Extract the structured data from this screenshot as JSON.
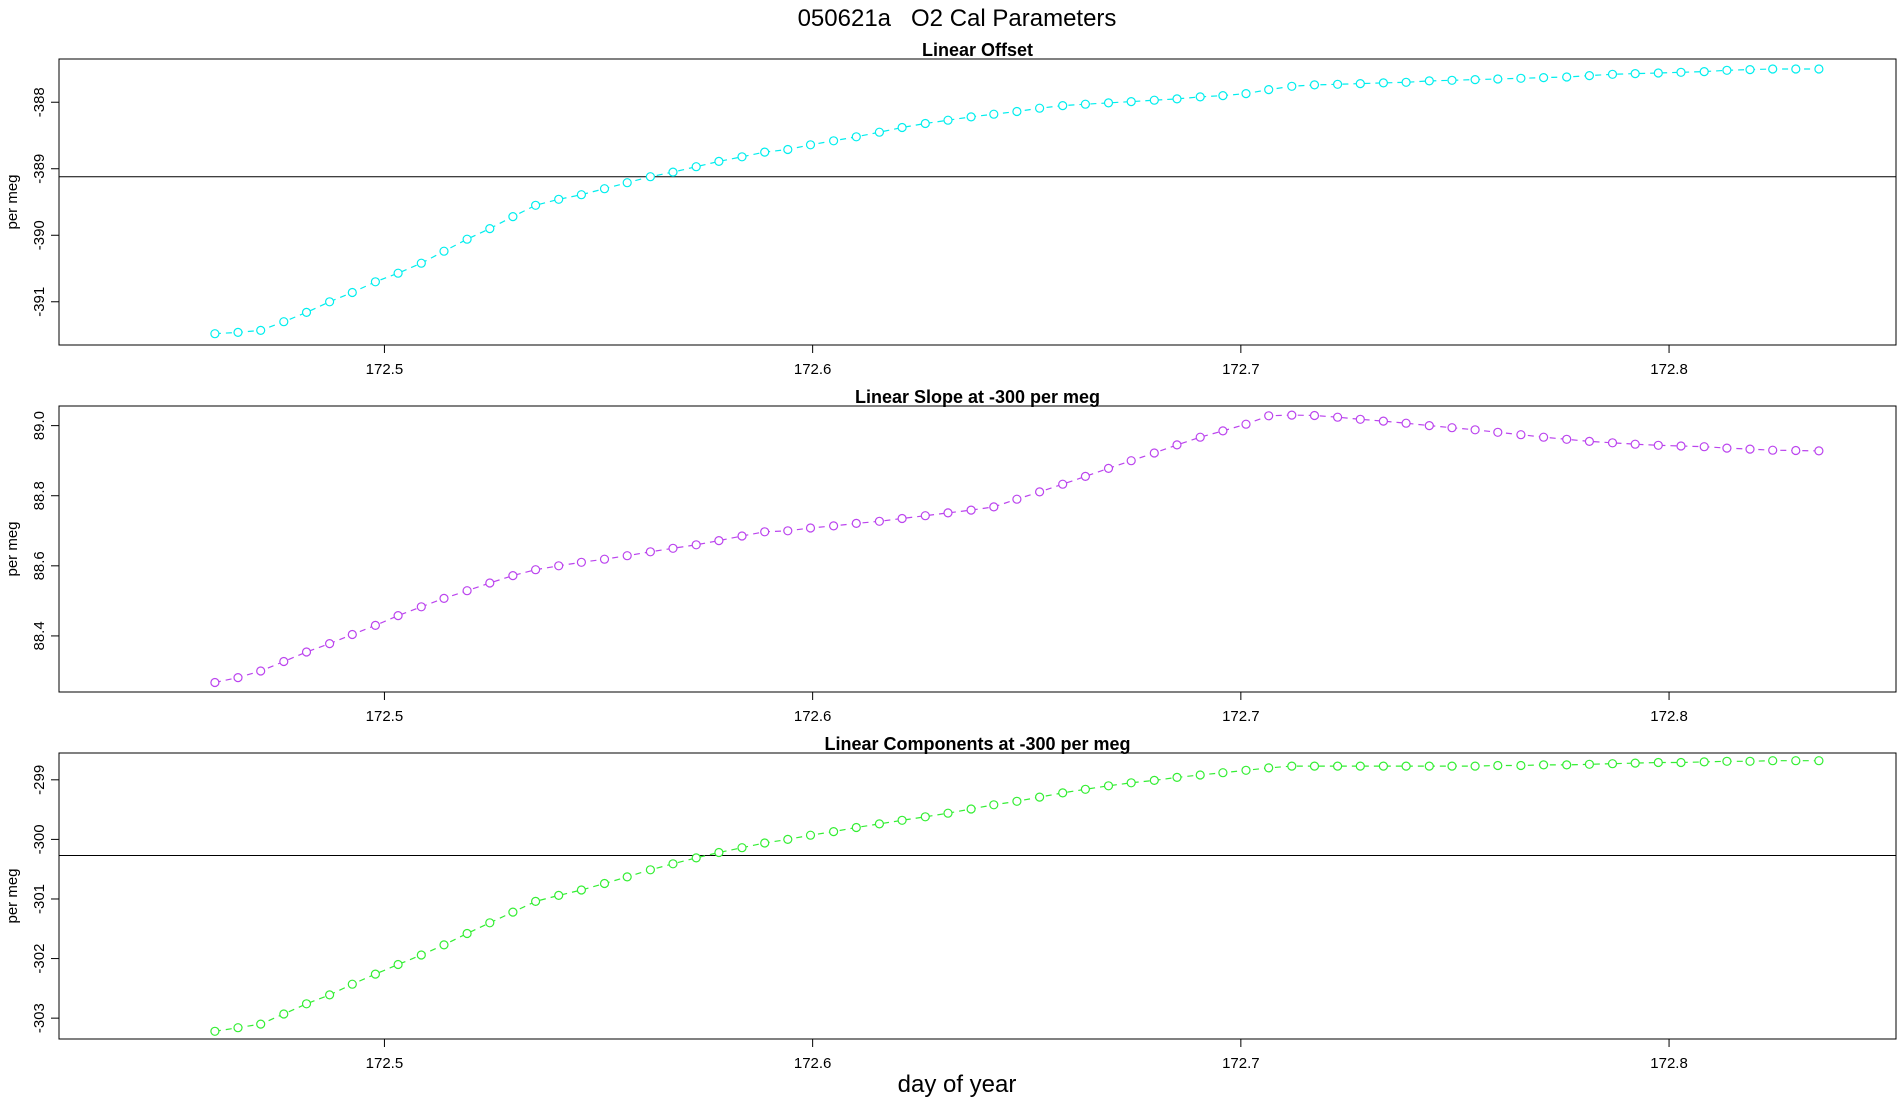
{
  "figure": {
    "title": "050621a   O2 Cal Parameters",
    "xlabel": "day of year"
  },
  "chart_data": [
    {
      "type": "line",
      "title": "Linear Offset",
      "ylabel": "per meg",
      "xlim": [
        172.424,
        172.853
      ],
      "ylim": [
        -391.65,
        -387.35
      ],
      "xticks": [
        172.5,
        172.6,
        172.7,
        172.8
      ],
      "xtick_labels": [
        "172.5",
        "172.6",
        "172.7",
        "172.8"
      ],
      "yticks": [
        -391,
        -390,
        -389,
        -388
      ],
      "ytick_labels": [
        "-391",
        "-390",
        "-389",
        "-388"
      ],
      "hline": -389.12,
      "color": "#00eeee",
      "series": [
        {
          "x": [
            172.4604,
            172.4658,
            172.4711,
            172.4765,
            172.4818,
            172.4872,
            172.4925,
            172.4979,
            172.5032,
            172.5086,
            172.5139,
            172.5193,
            172.5246,
            172.53,
            172.5353,
            172.5407,
            172.546,
            172.5514,
            172.5567,
            172.5621,
            172.5674,
            172.5728,
            172.5781,
            172.5835,
            172.5888,
            172.5942,
            172.5995,
            172.6049,
            172.6102,
            172.6156,
            172.6209,
            172.6263,
            172.6316,
            172.637,
            172.6423,
            172.6477,
            172.653,
            172.6584,
            172.6637,
            172.6691,
            172.6744,
            172.6798,
            172.6851,
            172.6905,
            172.6958,
            172.7012,
            172.7065,
            172.7119,
            172.7172,
            172.7226,
            172.7279,
            172.7333,
            172.7386,
            172.744,
            172.7493,
            172.7547,
            172.76,
            172.7654,
            172.7707,
            172.7761,
            172.7814,
            172.7868,
            172.7921,
            172.7975,
            172.8028,
            172.8082,
            172.8135,
            172.8189,
            172.8242,
            172.8296,
            172.835
          ],
          "y": [
            -391.48,
            -391.46,
            -391.43,
            -391.3,
            -391.16,
            -391.0,
            -390.86,
            -390.7,
            -390.57,
            -390.42,
            -390.24,
            -390.06,
            -389.9,
            -389.72,
            -389.55,
            -389.46,
            -389.39,
            -389.3,
            -389.21,
            -389.12,
            -389.05,
            -388.97,
            -388.89,
            -388.82,
            -388.75,
            -388.71,
            -388.64,
            -388.58,
            -388.52,
            -388.45,
            -388.38,
            -388.32,
            -388.27,
            -388.22,
            -388.18,
            -388.14,
            -388.09,
            -388.05,
            -388.03,
            -388.01,
            -387.99,
            -387.97,
            -387.95,
            -387.92,
            -387.9,
            -387.87,
            -387.81,
            -387.76,
            -387.74,
            -387.73,
            -387.72,
            -387.71,
            -387.7,
            -387.68,
            -387.67,
            -387.66,
            -387.65,
            -387.64,
            -387.63,
            -387.62,
            -387.6,
            -387.58,
            -387.57,
            -387.56,
            -387.55,
            -387.54,
            -387.52,
            -387.51,
            -387.5,
            -387.5,
            -387.5
          ]
        }
      ]
    },
    {
      "type": "line",
      "title": "Linear Slope at -300 per meg",
      "ylabel": "per meg",
      "xlim": [
        172.424,
        172.853
      ],
      "ylim": [
        88.24,
        89.056
      ],
      "xticks": [
        172.5,
        172.6,
        172.7,
        172.8
      ],
      "xtick_labels": [
        "172.5",
        "172.6",
        "172.7",
        "172.8"
      ],
      "yticks": [
        88.4,
        88.6,
        88.8,
        89.0
      ],
      "ytick_labels": [
        "88.4",
        "88.6",
        "88.8",
        "89.0"
      ],
      "color": "#bb44ee",
      "series": [
        {
          "x": [
            172.4604,
            172.4658,
            172.4711,
            172.4765,
            172.4818,
            172.4872,
            172.4925,
            172.4979,
            172.5032,
            172.5086,
            172.5139,
            172.5193,
            172.5246,
            172.53,
            172.5353,
            172.5407,
            172.546,
            172.5514,
            172.5567,
            172.5621,
            172.5674,
            172.5728,
            172.5781,
            172.5835,
            172.5888,
            172.5942,
            172.5995,
            172.6049,
            172.6102,
            172.6156,
            172.6209,
            172.6263,
            172.6316,
            172.637,
            172.6423,
            172.6477,
            172.653,
            172.6584,
            172.6637,
            172.6691,
            172.6744,
            172.6798,
            172.6851,
            172.6905,
            172.6958,
            172.7012,
            172.7065,
            172.7119,
            172.7172,
            172.7226,
            172.7279,
            172.7333,
            172.7386,
            172.744,
            172.7493,
            172.7547,
            172.76,
            172.7654,
            172.7707,
            172.7761,
            172.7814,
            172.7868,
            172.7921,
            172.7975,
            172.8028,
            172.8082,
            172.8135,
            172.8189,
            172.8242,
            172.8296,
            172.835
          ],
          "y": [
            88.267,
            88.281,
            88.3,
            88.327,
            88.354,
            88.378,
            88.404,
            88.43,
            88.458,
            88.483,
            88.507,
            88.529,
            88.551,
            88.572,
            88.589,
            88.6,
            88.61,
            88.619,
            88.629,
            88.64,
            88.65,
            88.66,
            88.672,
            88.685,
            88.697,
            88.7,
            88.708,
            88.714,
            88.721,
            88.727,
            88.735,
            88.743,
            88.751,
            88.759,
            88.768,
            88.79,
            88.811,
            88.833,
            88.855,
            88.878,
            88.9,
            88.922,
            88.945,
            88.967,
            88.985,
            89.004,
            89.028,
            89.03,
            89.029,
            89.024,
            89.018,
            89.013,
            89.007,
            89.0,
            88.994,
            88.988,
            88.981,
            88.974,
            88.967,
            88.961,
            88.955,
            88.951,
            88.947,
            88.944,
            88.942,
            88.94,
            88.936,
            88.933,
            88.93,
            88.929,
            88.928
          ]
        }
      ]
    },
    {
      "type": "line",
      "title": "Linear Components at -300 per meg",
      "ylabel": "per meg",
      "xlim": [
        172.424,
        172.853
      ],
      "ylim": [
        -303.35,
        -298.55
      ],
      "xticks": [
        172.5,
        172.6,
        172.7,
        172.8
      ],
      "xtick_labels": [
        "172.5",
        "172.6",
        "172.7",
        "172.8"
      ],
      "yticks": [
        -303,
        -302,
        -301,
        -300,
        -299
      ],
      "ytick_labels": [
        "-303",
        "-302",
        "-301",
        "-300",
        "-299"
      ],
      "hline": -300.27,
      "color": "#33ee33",
      "series": [
        {
          "x": [
            172.4604,
            172.4658,
            172.4711,
            172.4765,
            172.4818,
            172.4872,
            172.4925,
            172.4979,
            172.5032,
            172.5086,
            172.5139,
            172.5193,
            172.5246,
            172.53,
            172.5353,
            172.5407,
            172.546,
            172.5514,
            172.5567,
            172.5621,
            172.5674,
            172.5728,
            172.5781,
            172.5835,
            172.5888,
            172.5942,
            172.5995,
            172.6049,
            172.6102,
            172.6156,
            172.6209,
            172.6263,
            172.6316,
            172.637,
            172.6423,
            172.6477,
            172.653,
            172.6584,
            172.6637,
            172.6691,
            172.6744,
            172.6798,
            172.6851,
            172.6905,
            172.6958,
            172.7012,
            172.7065,
            172.7119,
            172.7172,
            172.7226,
            172.7279,
            172.7333,
            172.7386,
            172.744,
            172.7493,
            172.7547,
            172.76,
            172.7654,
            172.7707,
            172.7761,
            172.7814,
            172.7868,
            172.7921,
            172.7975,
            172.8028,
            172.8082,
            172.8135,
            172.8189,
            172.8242,
            172.8296,
            172.835
          ],
          "y": [
            -303.22,
            -303.16,
            -303.1,
            -302.93,
            -302.76,
            -302.61,
            -302.43,
            -302.26,
            -302.1,
            -301.94,
            -301.77,
            -301.58,
            -301.4,
            -301.22,
            -301.04,
            -300.94,
            -300.85,
            -300.74,
            -300.63,
            -300.51,
            -300.41,
            -300.31,
            -300.22,
            -300.14,
            -300.06,
            -300.0,
            -299.93,
            -299.87,
            -299.8,
            -299.74,
            -299.68,
            -299.62,
            -299.56,
            -299.49,
            -299.42,
            -299.36,
            -299.29,
            -299.22,
            -299.16,
            -299.1,
            -299.05,
            -299.01,
            -298.96,
            -298.92,
            -298.88,
            -298.84,
            -298.8,
            -298.77,
            -298.77,
            -298.77,
            -298.77,
            -298.77,
            -298.77,
            -298.77,
            -298.77,
            -298.77,
            -298.76,
            -298.76,
            -298.75,
            -298.75,
            -298.74,
            -298.73,
            -298.72,
            -298.71,
            -298.71,
            -298.7,
            -298.69,
            -298.69,
            -298.68,
            -298.68,
            -298.68
          ]
        }
      ]
    }
  ]
}
